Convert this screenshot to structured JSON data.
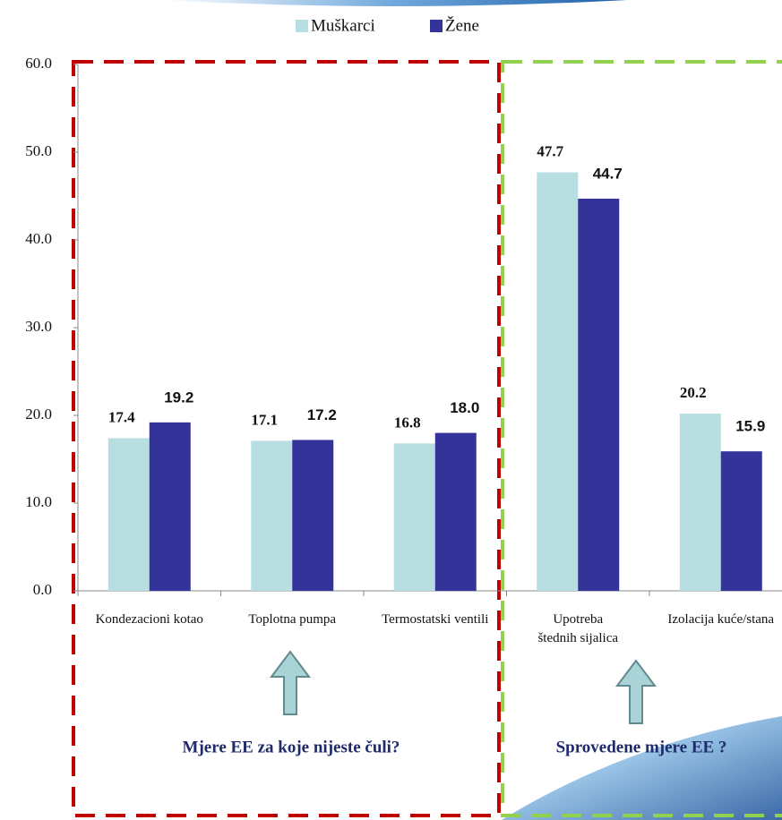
{
  "chart_data": {
    "type": "bar",
    "categories": [
      "Kondezacioni kotao",
      "Toplotna pumpa",
      "Termostatski ventili",
      "Upotreba štednih sijalica",
      "Izolacija kuće/stana"
    ],
    "series": [
      {
        "name": "Muškarci",
        "color": "#b7dfe2",
        "values": [
          17.4,
          17.1,
          16.8,
          47.7,
          20.2
        ],
        "value_labels": [
          "17.4",
          "17.1",
          "16.8",
          "47.7",
          "20.2"
        ]
      },
      {
        "name": "Žene",
        "color": "#333399",
        "values": [
          19.2,
          17.2,
          18.0,
          44.7,
          15.9
        ],
        "value_labels": [
          "19.2",
          "17.2",
          "18.0",
          "44.7",
          "15.9"
        ]
      }
    ],
    "ylim": [
      0,
      60
    ],
    "yticks": [
      {
        "value": 0,
        "label": "0.0"
      },
      {
        "value": 10,
        "label": "10.0"
      },
      {
        "value": 20,
        "label": "20.0"
      },
      {
        "value": 30,
        "label": "30.0"
      },
      {
        "value": 40,
        "label": "40.0"
      },
      {
        "value": 50,
        "label": "50.0"
      },
      {
        "value": 60,
        "label": "60.0"
      }
    ],
    "annotations": [
      "Mjere EE za koje nijeste čuli?",
      "Sprovedene mjere EE ?"
    ]
  }
}
